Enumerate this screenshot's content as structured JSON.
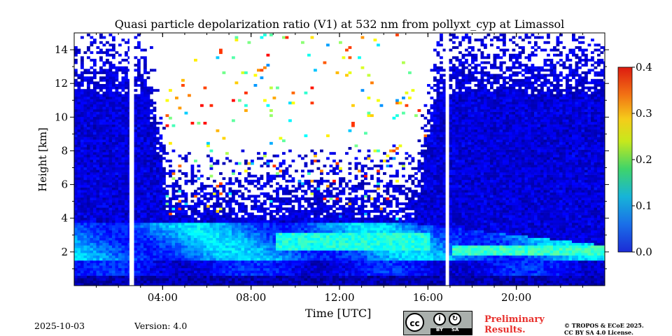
{
  "chart_data": {
    "type": "heatmap",
    "title": "Quasi particle depolarization ratio (V1) at 532 nm from pollyxt_cyp at Limassol",
    "xlabel": "Time [UTC]",
    "ylabel": "Height [km]",
    "xlim_hours": [
      0,
      24
    ],
    "ylim_km": [
      0,
      15
    ],
    "x_ticks": [
      {
        "hour": 4,
        "label": "04:00"
      },
      {
        "hour": 8,
        "label": "08:00"
      },
      {
        "hour": 12,
        "label": "12:00"
      },
      {
        "hour": 16,
        "label": "16:00"
      },
      {
        "hour": 20,
        "label": "20:00"
      }
    ],
    "y_ticks": [
      {
        "value": 2,
        "label": "2"
      },
      {
        "value": 4,
        "label": "4"
      },
      {
        "value": 6,
        "label": "6"
      },
      {
        "value": 8,
        "label": "8"
      },
      {
        "value": 10,
        "label": "10"
      },
      {
        "value": 12,
        "label": "12"
      },
      {
        "value": 14,
        "label": "14"
      }
    ],
    "colorbar": {
      "range": [
        0.0,
        0.4
      ],
      "ticks": [
        {
          "value": 0.0,
          "label": "0.0"
        },
        {
          "value": 0.1,
          "label": "0.1"
        },
        {
          "value": 0.2,
          "label": "0.2"
        },
        {
          "value": 0.3,
          "label": "0.3"
        },
        {
          "value": 0.4,
          "label": "0.4"
        }
      ],
      "colormap": "jet"
    },
    "data_gaps_hours": [
      [
        2.5,
        2.7
      ],
      [
        16.8,
        16.95
      ]
    ],
    "layers": {
      "boundary_layer_top_km": 3.8,
      "elevated_layer": {
        "height_km": 2.1,
        "start_hour": 17,
        "end_hour": 24,
        "value": 0.17
      },
      "daytime_noise_limit_km": 4.0
    }
  },
  "footer": {
    "date": "2025-10-03",
    "version": "Version: 4.0",
    "preliminary_line1": "Preliminary",
    "preliminary_line2": "Results.",
    "copyright_line1": "© TROPOS & ECoE 2025.",
    "copyright_line2": "CC BY SA 4.0 License.",
    "license_badge": {
      "cc": "cc",
      "by": "BY",
      "sa": "SA"
    }
  }
}
